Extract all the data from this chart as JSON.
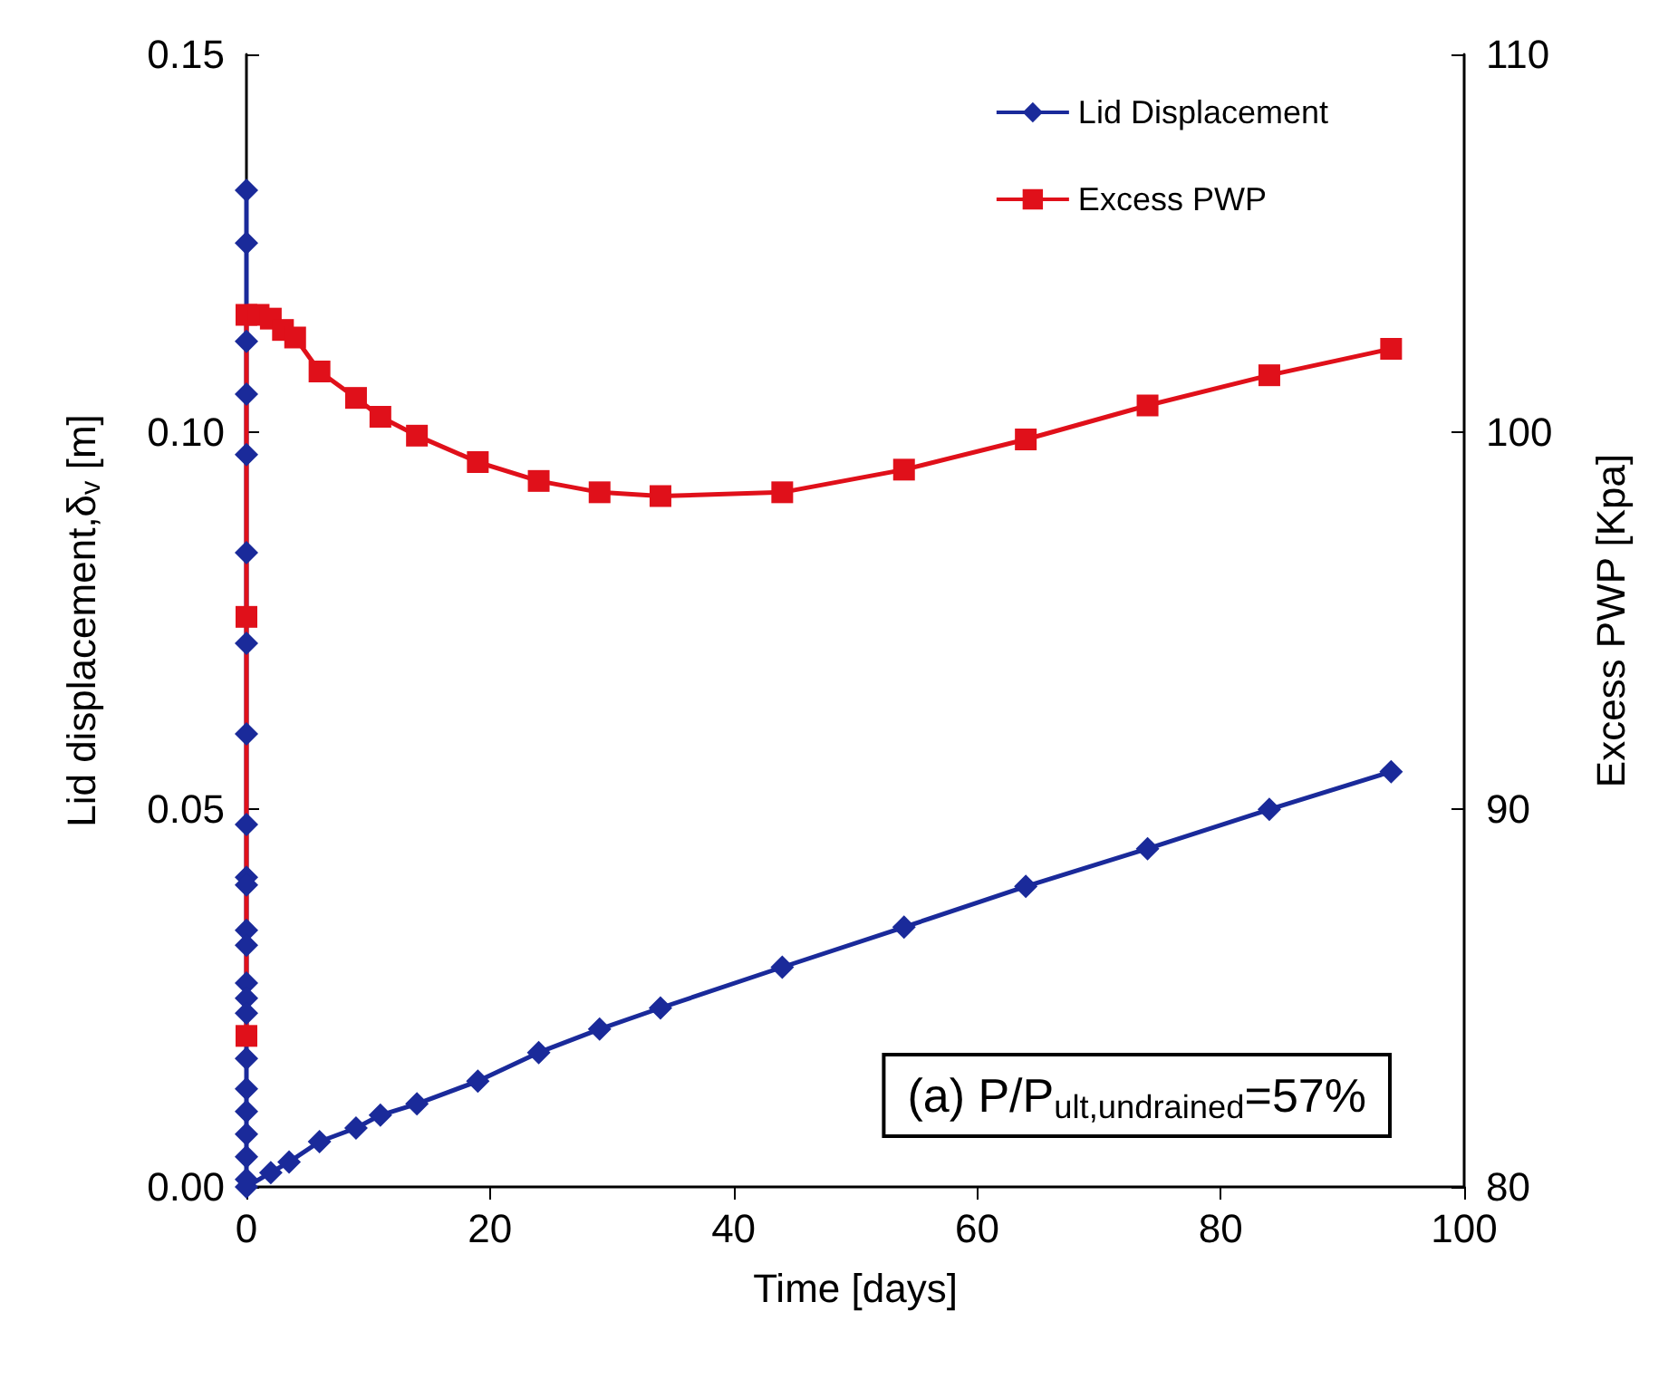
{
  "chart_data": {
    "type": "line",
    "xlabel": "Time [days]",
    "ylabel": "Lid displacement,δ$_{v}$ [m]",
    "y2label": "Excess PWP [Kpa]",
    "xlim": [
      0,
      100
    ],
    "xticks": [
      0,
      20,
      40,
      60,
      80,
      100
    ],
    "ylim": [
      0,
      0.15
    ],
    "yticks": [
      {
        "value": 0,
        "label": "0.00"
      },
      {
        "value": 0.05,
        "label": "0.05"
      },
      {
        "value": 0.1,
        "label": "0.10"
      },
      {
        "value": 0.15,
        "label": "0.15"
      }
    ],
    "y2lim": [
      80,
      110
    ],
    "y2ticks": [
      80,
      90,
      100,
      110
    ],
    "grid": false,
    "legend": "top right",
    "line_style": "solid",
    "annotations": [
      "(a) P/P$_{ult,undrained}$=57%"
    ],
    "series": [
      {
        "name": "Lid Displacement",
        "color": "#1a2a9a",
        "marker": "diamond",
        "x": [
          0,
          0,
          0,
          0,
          0,
          0,
          0,
          0,
          0,
          0,
          0,
          0,
          0,
          0,
          0,
          0,
          0,
          0,
          0,
          0,
          0,
          0,
          0,
          2,
          3.5,
          6,
          9,
          11,
          14,
          19,
          24,
          29,
          34,
          44,
          54,
          64,
          74,
          84,
          94
        ],
        "values": [
          0.132,
          0.125,
          0.112,
          0.105,
          0.097,
          0.084,
          0.072,
          0.06,
          0.048,
          0.041,
          0.04,
          0.034,
          0.032,
          0.027,
          0.025,
          0.023,
          0.017,
          0.013,
          0.01,
          0.007,
          0.004,
          0.001,
          0,
          0.0019,
          0.0033,
          0.006,
          0.0078,
          0.0095,
          0.011,
          0.014,
          0.0178,
          0.0209,
          0.0237,
          0.0291,
          0.0344,
          0.0398,
          0.0448,
          0.05,
          0.055
        ]
      },
      {
        "name": "Excess PWP",
        "color": "#e0101a",
        "marker": "square",
        "axis": "y2",
        "x": [
          0,
          0,
          0,
          1,
          2,
          3,
          4,
          6,
          9,
          11,
          14,
          19,
          24,
          29,
          34,
          44,
          54,
          64,
          74,
          84,
          94
        ],
        "values": [
          84,
          95.1,
          103.1,
          103.1,
          103,
          102.7,
          102.5,
          101.6,
          100.9,
          100.4,
          99.9,
          99.2,
          98.7,
          98.4,
          98.3,
          98.4,
          99,
          99.8,
          100.7,
          101.5,
          102.2
        ]
      }
    ]
  }
}
